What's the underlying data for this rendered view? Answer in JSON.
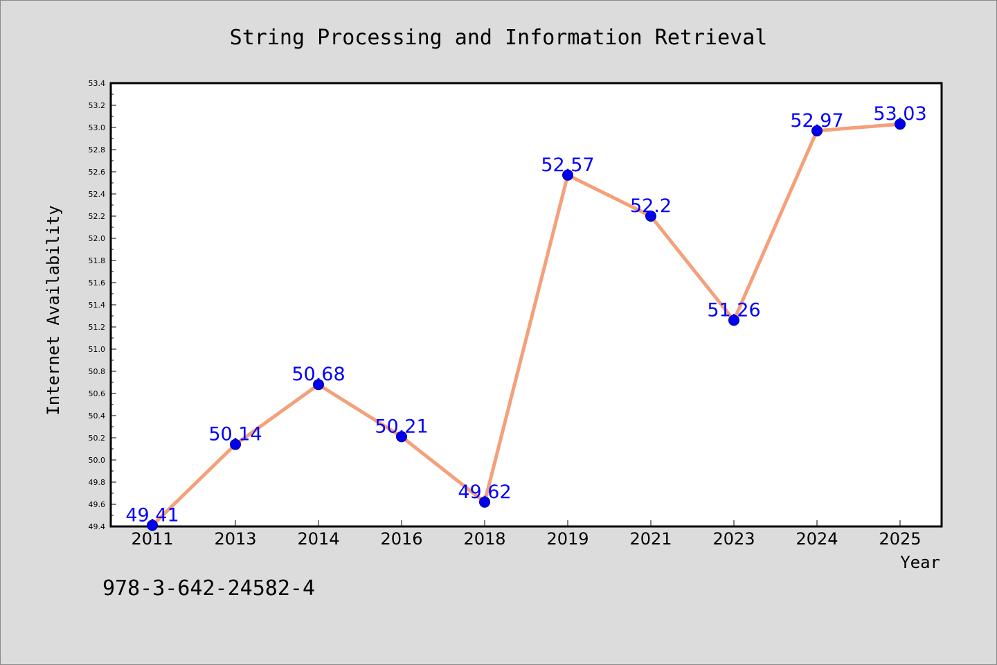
{
  "chart_data": {
    "type": "line",
    "title": "String Processing and Information Retrieval",
    "xlabel": "Year",
    "ylabel": "Internet Availability",
    "categories": [
      "2011",
      "2013",
      "2014",
      "2016",
      "2018",
      "2019",
      "2021",
      "2023",
      "2024",
      "2025"
    ],
    "series": [
      {
        "values": [
          49.41,
          50.14,
          50.68,
          50.21,
          49.62,
          52.57,
          52.2,
          51.26,
          52.97,
          53.03
        ]
      }
    ],
    "data_labels": [
      "49.41",
      "50.14",
      "50.68",
      "50.21",
      "49.62",
      "52.57",
      "52.2",
      "51.26",
      "52.97",
      "53.03"
    ],
    "ylim": [
      49.4,
      53.4
    ],
    "y_ticks": [
      "49.4",
      "49.6",
      "49.8",
      "50.0",
      "50.2",
      "50.4",
      "50.6",
      "50.8",
      "51.0",
      "51.2",
      "51.4",
      "51.6",
      "51.8",
      "52.0",
      "52.2",
      "52.4",
      "52.6",
      "52.8",
      "53.0",
      "53.2",
      "53.4"
    ],
    "grid": false,
    "colors": {
      "line": "#f4a07a",
      "marker": "#0000ee",
      "label": "#0000ff",
      "background": "#dcdcdc",
      "plot_bg": "#ffffff"
    }
  },
  "footer_text": "978-3-642-24582-4"
}
